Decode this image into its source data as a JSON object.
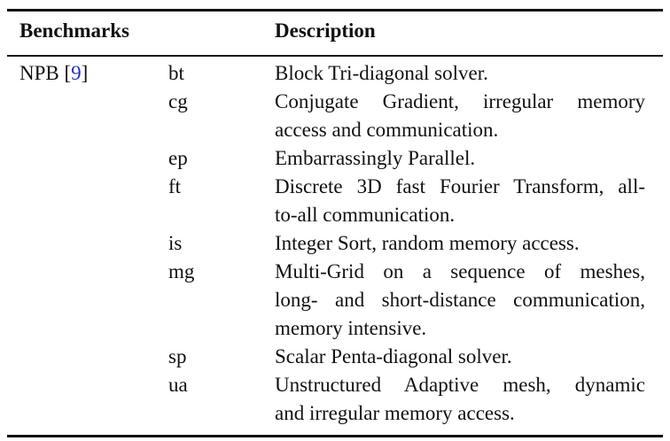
{
  "header": {
    "benchmarks": "Benchmarks",
    "description": "Description"
  },
  "suite": {
    "name": "NPB",
    "ref_open": "[",
    "ref_num": "9",
    "ref_close": "]"
  },
  "rows": [
    {
      "code": "bt",
      "lines": [
        "Block Tri-diagonal solver."
      ]
    },
    {
      "code": "cg",
      "lines": [
        "Conjugate Gradient, irregular memory",
        "access and communication."
      ]
    },
    {
      "code": "ep",
      "lines": [
        "Embarrassingly Parallel."
      ]
    },
    {
      "code": "ft",
      "lines": [
        "Discrete 3D fast Fourier Transform, all-",
        "to-all communication."
      ]
    },
    {
      "code": "is",
      "lines": [
        "Integer Sort, random memory access."
      ]
    },
    {
      "code": "mg",
      "lines": [
        "Multi-Grid on a sequence of meshes,",
        "long- and short-distance communication,",
        "memory intensive."
      ]
    },
    {
      "code": "sp",
      "lines": [
        "Scalar Penta-diagonal solver."
      ]
    },
    {
      "code": "ua",
      "lines": [
        "Unstructured Adaptive mesh, dynamic",
        "and irregular memory access."
      ]
    }
  ]
}
